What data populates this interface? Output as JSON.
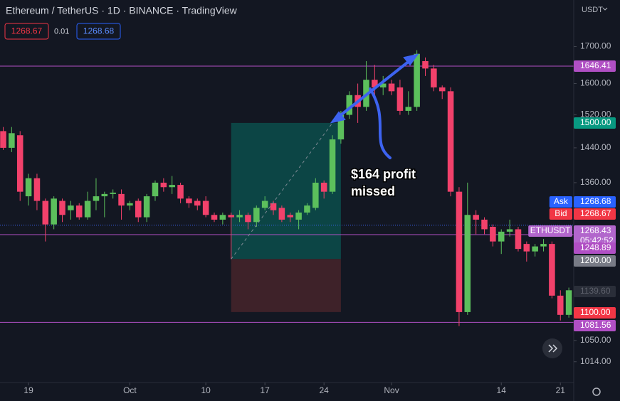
{
  "chart_data": {
    "type": "candlestick",
    "header": {
      "title": "Ethereum / TetherUS · 1D · BINANCE · TradingView",
      "bid": "1268.67",
      "spread": "0.01",
      "ask": "1268.68"
    },
    "currency": "USDT",
    "log_scale": true,
    "up_color": "#5cbf5c",
    "down_color": "#f2416b",
    "xlim": [
      -0.38,
      67.58
    ],
    "ylim": [
      980,
      1835
    ],
    "xticks": [
      {
        "value": 3,
        "label": "19"
      },
      {
        "value": 15,
        "label": "Oct"
      },
      {
        "value": 24,
        "label": "10"
      },
      {
        "value": 31,
        "label": "17"
      },
      {
        "value": 38,
        "label": "24"
      },
      {
        "value": 46,
        "label": "Nov"
      },
      {
        "value": 59,
        "label": "14"
      },
      {
        "value": 66,
        "label": "21"
      }
    ],
    "yticks": [
      {
        "value": 1700,
        "label": "1700.00"
      },
      {
        "value": 1600,
        "label": "1600.00"
      },
      {
        "value": 1520,
        "label": "1520.00"
      },
      {
        "value": 1440,
        "label": "1440.00"
      },
      {
        "value": 1360,
        "label": "1360.00"
      },
      {
        "value": 1050,
        "label": "1050.00"
      },
      {
        "value": 1014,
        "label": "1014.00"
      }
    ],
    "x": [
      0,
      1,
      2,
      3,
      4,
      5,
      6,
      7,
      8,
      9,
      10,
      11,
      12,
      13,
      14,
      15,
      16,
      17,
      18,
      19,
      20,
      21,
      22,
      23,
      24,
      25,
      26,
      27,
      28,
      29,
      30,
      31,
      32,
      33,
      34,
      35,
      36,
      37,
      38,
      39,
      40,
      41,
      42,
      43,
      44,
      45,
      46,
      47,
      48,
      49,
      50,
      51,
      52,
      53,
      54,
      55,
      56,
      57,
      58,
      59,
      60,
      61,
      62,
      63,
      64,
      65,
      66,
      67
    ],
    "open": [
      1480,
      1440,
      1470,
      1330,
      1370,
      1320,
      1270,
      1320,
      1300,
      1310,
      1285,
      1320,
      1330,
      1335,
      1335,
      1310,
      1320,
      1285,
      1330,
      1360,
      1350,
      1355,
      1325,
      1320,
      1320,
      1290,
      1280,
      1290,
      1285,
      1290,
      1275,
      1305,
      1315,
      1305,
      1290,
      1280,
      1295,
      1305,
      1360,
      1340,
      1460,
      1520,
      1570,
      1540,
      1610,
      1590,
      1600,
      1590,
      1530,
      1540,
      1660,
      1640,
      1590,
      1580,
      1340,
      1100,
      1290,
      1280,
      1265,
      1235,
      1255,
      1260,
      1230,
      1215,
      1225,
      1230,
      1130,
      1095
    ],
    "high": [
      1490,
      1490,
      1480,
      1380,
      1380,
      1325,
      1330,
      1325,
      1320,
      1315,
      1340,
      1370,
      1340,
      1345,
      1345,
      1320,
      1325,
      1335,
      1365,
      1370,
      1375,
      1360,
      1330,
      1325,
      1330,
      1295,
      1295,
      1295,
      1300,
      1295,
      1310,
      1330,
      1320,
      1310,
      1295,
      1300,
      1315,
      1370,
      1365,
      1470,
      1530,
      1580,
      1600,
      1660,
      1650,
      1620,
      1610,
      1610,
      1580,
      1690,
      1670,
      1650,
      1595,
      1590,
      1350,
      1360,
      1300,
      1285,
      1270,
      1260,
      1280,
      1265,
      1235,
      1230,
      1240,
      1235,
      1140,
      1145
    ],
    "low": [
      1435,
      1430,
      1320,
      1310,
      1300,
      1235,
      1260,
      1275,
      1280,
      1280,
      1280,
      1300,
      1285,
      1325,
      1280,
      1300,
      1275,
      1275,
      1320,
      1340,
      1335,
      1315,
      1305,
      1300,
      1285,
      1275,
      1270,
      1200,
      1275,
      1260,
      1265,
      1300,
      1290,
      1275,
      1275,
      1260,
      1290,
      1300,
      1325,
      1335,
      1450,
      1510,
      1500,
      1530,
      1560,
      1570,
      1570,
      1520,
      1520,
      1530,
      1620,
      1580,
      1560,
      1330,
      1075,
      1095,
      1250,
      1250,
      1225,
      1210,
      1245,
      1215,
      1195,
      1205,
      1215,
      1125,
      1085,
      1090
    ],
    "close": [
      1440,
      1475,
      1340,
      1370,
      1320,
      1270,
      1325,
      1290,
      1310,
      1285,
      1320,
      1330,
      1335,
      1338,
      1310,
      1315,
      1285,
      1330,
      1360,
      1350,
      1355,
      1325,
      1315,
      1310,
      1290,
      1280,
      1290,
      1285,
      1290,
      1275,
      1305,
      1320,
      1300,
      1280,
      1285,
      1295,
      1310,
      1360,
      1340,
      1460,
      1520,
      1570,
      1540,
      1610,
      1590,
      1600,
      1580,
      1530,
      1540,
      1680,
      1640,
      1590,
      1580,
      1340,
      1100,
      1290,
      1280,
      1260,
      1235,
      1255,
      1260,
      1220,
      1215,
      1225,
      1230,
      1130,
      1095,
      1140
    ],
    "hlines": [
      1646.41,
      1248.89,
      1081.56
    ],
    "last_price": 1268.43,
    "position": {
      "x": [
        27,
        40
      ],
      "target": 1500,
      "entry": 1200,
      "stop": 1100
    },
    "price_labels": [
      {
        "value": 1646.41,
        "label": "1646.41",
        "color": "#b04fc4"
      },
      {
        "value": 1500,
        "label": "1500.00",
        "color": "#089981"
      },
      {
        "name": "Ask",
        "value": 1268.68,
        "label": "1268.68",
        "color": "#2962ff"
      },
      {
        "name": "Bid",
        "value": 1268.67,
        "label": "1268.67",
        "color": "#f23645"
      },
      {
        "name": "ETHUSDT",
        "value": 1268.43,
        "label": "1268.43",
        "countdown": "05:42:52",
        "color": "#b266cc"
      },
      {
        "value": 1248.89,
        "label": "1248.89",
        "color": "#b04fc4"
      },
      {
        "value": 1200,
        "label": "1200.00",
        "color": "#787b86"
      },
      {
        "value": 1139.6,
        "label": "1139.60",
        "color": "#2a2e39"
      },
      {
        "value": 1100,
        "label": "1100.00",
        "color": "#f23645"
      },
      {
        "value": 1081.56,
        "label": "1081.56",
        "color": "#b04fc4"
      }
    ],
    "annotation": [
      "$164 profit",
      "missed"
    ]
  }
}
